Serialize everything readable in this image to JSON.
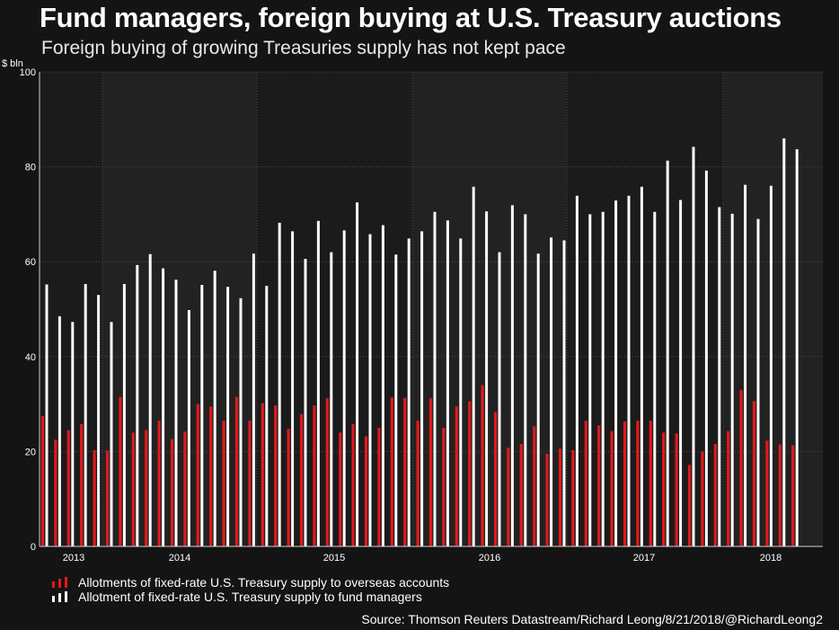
{
  "header": {
    "title": "Fund managers, foreign buying at U.S. Treasury auctions",
    "subtitle": "Foreign buying of growing Treasuries supply has not kept pace"
  },
  "chart_data": {
    "type": "bar",
    "ylabel": "$ bln",
    "ylim": [
      0,
      100
    ],
    "yticks": [
      0,
      20,
      40,
      60,
      80,
      100
    ],
    "year_labels": [
      "2013",
      "2014",
      "2015",
      "2016",
      "2017",
      "2018"
    ],
    "grid": true,
    "legend_position": "bottom-left",
    "series": [
      {
        "name": "Allotments of fixed-rate U.S. Treasury supply to overseas accounts",
        "color": "#e0191c",
        "values": [
          27.5,
          22.5,
          24.5,
          25.8,
          20.3,
          20.2,
          31.5,
          24.0,
          24.5,
          26.5,
          22.6,
          24.2,
          30.0,
          29.5,
          26.5,
          31.5,
          26.5,
          30.2,
          29.7,
          24.8,
          27.9,
          29.7,
          31.2,
          24.0,
          25.8,
          23.2,
          25.0,
          31.4,
          31.3,
          26.5,
          31.2,
          25.0,
          29.5,
          30.6,
          34.0,
          28.3,
          20.8,
          21.6,
          25.3,
          19.5,
          20.6,
          20.3,
          26.5,
          25.5,
          24.3,
          26.3,
          26.5,
          26.5,
          24.0,
          23.8,
          17.2,
          20.0,
          21.6,
          24.3,
          33.0,
          30.6,
          22.3,
          21.5,
          21.3
        ]
      },
      {
        "name": "Allotment of fixed-rate U.S. Treasury supply to fund managers",
        "color": "#ffffff",
        "values": [
          55.2,
          48.5,
          47.3,
          55.3,
          53.0,
          47.3,
          55.3,
          59.3,
          61.6,
          58.6,
          56.2,
          49.8,
          55.1,
          58.1,
          54.7,
          52.3,
          61.7,
          54.9,
          68.2,
          66.4,
          60.6,
          68.6,
          62.0,
          66.6,
          72.5,
          65.8,
          67.7,
          61.5,
          64.9,
          66.4,
          70.5,
          68.7,
          64.9,
          75.8,
          70.6,
          62.0,
          71.9,
          70.0,
          61.7,
          65.1,
          64.5,
          73.9,
          70.0,
          70.5,
          72.9,
          73.9,
          75.8,
          70.5,
          81.3,
          73.0,
          84.2,
          79.2,
          71.5,
          70.1,
          76.2,
          69.0,
          76.0,
          86.0,
          83.7
        ]
      }
    ]
  },
  "source": "Source: Thomson Reuters Datastream/Richard Leong/8/21/2018/@RichardLeong2"
}
